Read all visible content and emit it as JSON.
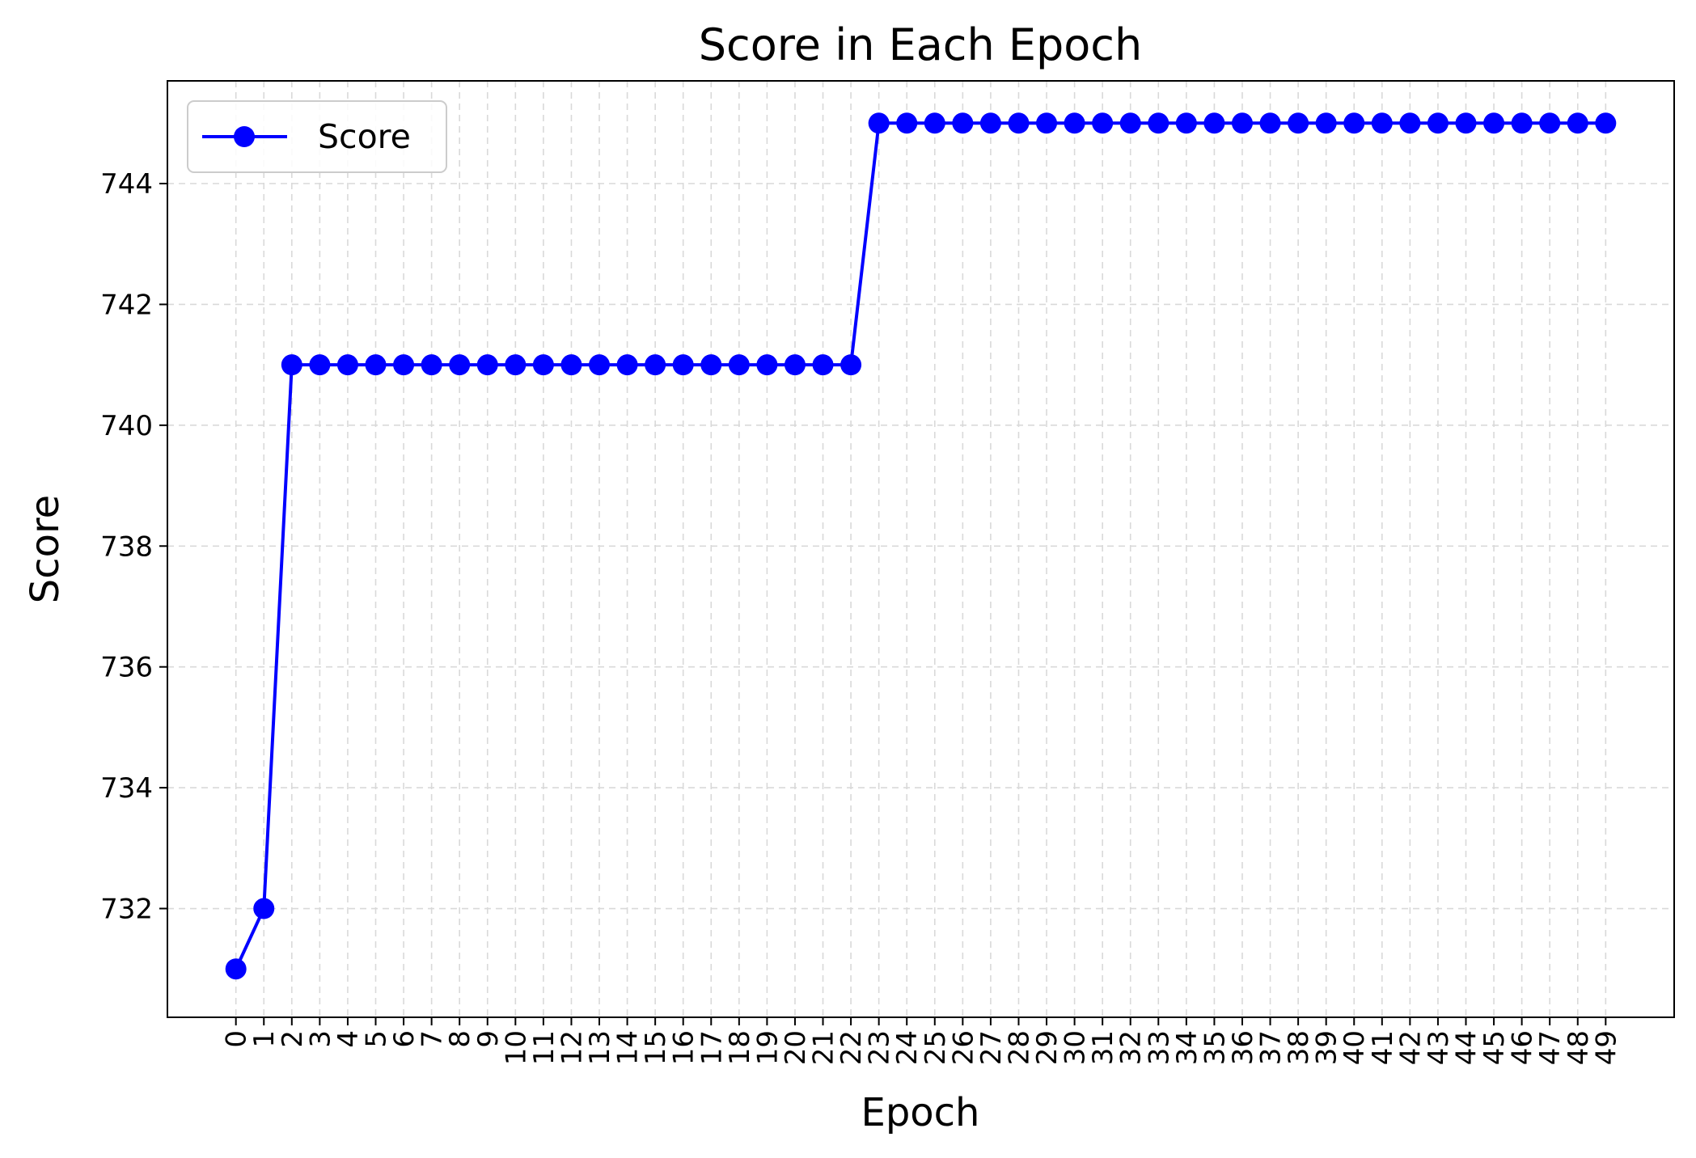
{
  "chart_data": {
    "type": "line",
    "title": "Score in Each Epoch",
    "xlabel": "Epoch",
    "ylabel": "Score",
    "x": [
      0,
      1,
      2,
      3,
      4,
      5,
      6,
      7,
      8,
      9,
      10,
      11,
      12,
      13,
      14,
      15,
      16,
      17,
      18,
      19,
      20,
      21,
      22,
      23,
      24,
      25,
      26,
      27,
      28,
      29,
      30,
      31,
      32,
      33,
      34,
      35,
      36,
      37,
      38,
      39,
      40,
      41,
      42,
      43,
      44,
      45,
      46,
      47,
      48,
      49
    ],
    "series": [
      {
        "name": "Score",
        "color": "#0000ff",
        "marker": "circle",
        "values": [
          731,
          732,
          741,
          741,
          741,
          741,
          741,
          741,
          741,
          741,
          741,
          741,
          741,
          741,
          741,
          741,
          741,
          741,
          741,
          741,
          741,
          741,
          741,
          745,
          745,
          745,
          745,
          745,
          745,
          745,
          745,
          745,
          745,
          745,
          745,
          745,
          745,
          745,
          745,
          745,
          745,
          745,
          745,
          745,
          745,
          745,
          745,
          745,
          745,
          745
        ]
      }
    ],
    "xlim": [
      -2.45,
      51.45
    ],
    "ylim": [
      730.2,
      745.7
    ],
    "yticks": [
      732,
      734,
      736,
      738,
      740,
      742,
      744
    ],
    "xtick_rotation": 90,
    "grid": true,
    "grid_style": "dashed",
    "legend": {
      "placement": "upper-left"
    }
  }
}
